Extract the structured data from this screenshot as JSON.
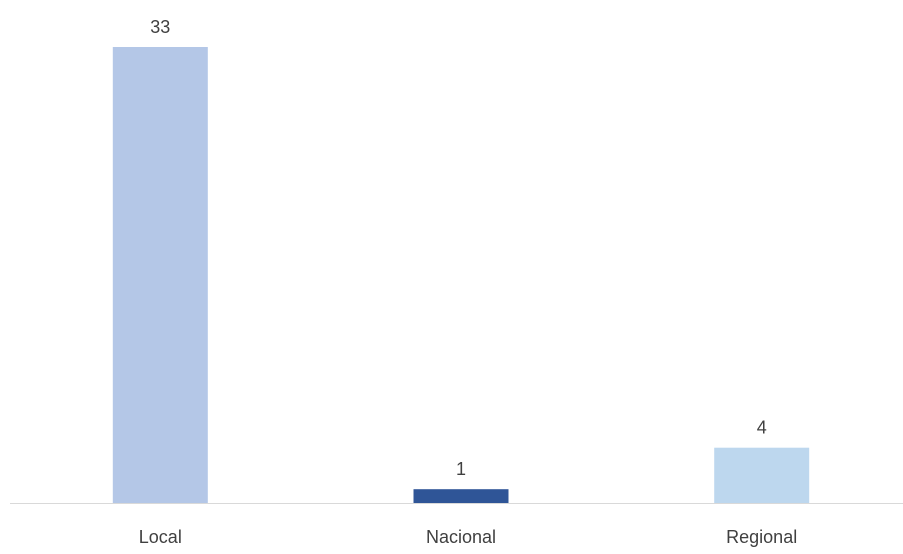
{
  "chart_data": {
    "type": "bar",
    "title": "",
    "xlabel": "",
    "ylabel": "",
    "categories": [
      "Local",
      "Nacional",
      "Regional"
    ],
    "values": [
      33,
      1,
      4
    ],
    "data_labels": [
      "33",
      "1",
      "4"
    ],
    "colors": [
      "#b4c7e7",
      "#2f5597",
      "#bdd7ee"
    ],
    "axis_color": "#d9d9d9",
    "ylim": [
      0,
      33
    ],
    "grid": false,
    "legend": "none"
  }
}
